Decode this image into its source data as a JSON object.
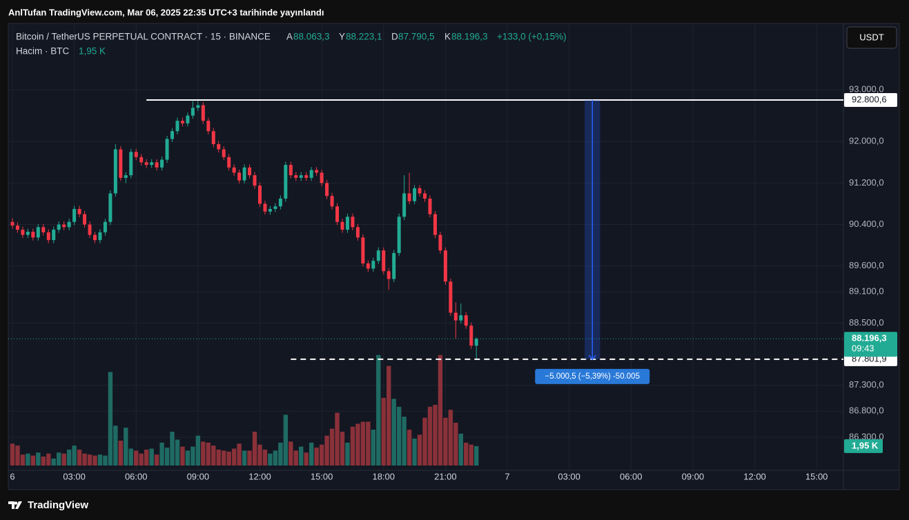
{
  "chart_data": {
    "type": "candlestick",
    "publish_note": "AnlTufan TradingView.com, Mar 06, 2025 22:35 UTC+3 tarihinde yayınlandı",
    "symbol": "Bitcoin / TetherUS PERPETUAL CONTRACT · 15 · BINANCE",
    "legend": {
      "open_key": "A",
      "open": "88.063,3",
      "high_key": "Y",
      "high": "88.223,1",
      "low_key": "D",
      "low": "87.790,5",
      "close_key": "K",
      "close": "88.196,3",
      "change": "+133,0 (+0,15%)"
    },
    "volume_title": "Hacim · BTC",
    "currency": "USDT",
    "brand": "TradingView",
    "up_color": "#22ab94",
    "down_color": "#f23645",
    "up_volume_color": "#1f6b63",
    "down_volume_color": "#8a3139",
    "open": [
      90450,
      90380,
      90300,
      90200,
      90260,
      90150,
      90350,
      90250,
      90100,
      90300,
      90400,
      90350,
      90450,
      90700,
      90600,
      90400,
      90200,
      90100,
      90250,
      90450,
      91000,
      91850,
      91300,
      91350,
      91800,
      91700,
      91600,
      91550,
      91600,
      91500,
      91650,
      92050,
      92200,
      92400,
      92350,
      92500,
      92650,
      92700,
      92400,
      92200,
      91950,
      91850,
      91700,
      91500,
      91400,
      91250,
      91500,
      91350,
      91150,
      90800,
      90650,
      90700,
      90750,
      90900,
      91550,
      91350,
      91300,
      91350,
      91300,
      91450,
      91400,
      91200,
      90950,
      90750,
      90450,
      90300,
      90550,
      90350,
      90150,
      89650,
      89550,
      89700,
      89900,
      89500,
      89350,
      89850,
      90550,
      91000,
      90850,
      91100,
      91000,
      90900,
      90600,
      90200,
      89900,
      89300,
      88700,
      88550,
      88650,
      88450,
      88063.3
    ],
    "high": [
      90520,
      90440,
      90360,
      90320,
      90320,
      90410,
      90410,
      90310,
      90360,
      90460,
      90460,
      90510,
      90760,
      90760,
      90660,
      90460,
      90260,
      90310,
      90510,
      91060,
      91950,
      91910,
      91410,
      91860,
      91860,
      91760,
      91660,
      91660,
      91660,
      91710,
      92110,
      92260,
      92460,
      92460,
      92560,
      92780,
      92790,
      92760,
      92460,
      92260,
      92010,
      91910,
      91760,
      91560,
      91460,
      91560,
      91560,
      91410,
      91210,
      90860,
      90760,
      90810,
      90960,
      91610,
      91610,
      91410,
      91410,
      91410,
      91510,
      91510,
      91460,
      91260,
      91010,
      90810,
      90510,
      90610,
      90610,
      90410,
      90210,
      89710,
      89760,
      89960,
      89960,
      89560,
      89910,
      90610,
      91350,
      91400,
      91160,
      91160,
      91060,
      90960,
      90660,
      90260,
      89960,
      89360,
      88900,
      88880,
      88710,
      88510,
      88223.1
    ],
    "low": [
      90320,
      90240,
      90140,
      90140,
      90090,
      90090,
      90190,
      90040,
      90040,
      90240,
      90290,
      90290,
      90390,
      90540,
      90340,
      90140,
      90040,
      90040,
      90190,
      90390,
      90940,
      91240,
      91200,
      91290,
      91640,
      91540,
      91490,
      91490,
      91440,
      91440,
      91590,
      91990,
      92140,
      92290,
      92290,
      92440,
      92590,
      92340,
      92140,
      91890,
      91790,
      91640,
      91440,
      91340,
      91190,
      91190,
      91290,
      91090,
      90740,
      90590,
      90590,
      90640,
      90690,
      90840,
      91290,
      91240,
      91240,
      91240,
      91240,
      91340,
      91140,
      90890,
      90690,
      90390,
      90240,
      90240,
      90290,
      90090,
      89590,
      89490,
      89490,
      89640,
      89440,
      89140,
      89290,
      89790,
      90490,
      90790,
      90790,
      90940,
      90840,
      90540,
      90140,
      89840,
      89240,
      88640,
      88200,
      88490,
      88390,
      88000,
      87790.5
    ],
    "close": [
      90380,
      90300,
      90200,
      90260,
      90150,
      90350,
      90250,
      90100,
      90300,
      90400,
      90350,
      90450,
      90700,
      90600,
      90400,
      90200,
      90100,
      90250,
      90450,
      91000,
      91850,
      91300,
      91350,
      91800,
      91700,
      91600,
      91550,
      91600,
      91500,
      91650,
      92050,
      92200,
      92400,
      92350,
      92500,
      92650,
      92700,
      92400,
      92200,
      91950,
      91850,
      91700,
      91500,
      91400,
      91250,
      91500,
      91350,
      91150,
      90800,
      90650,
      90700,
      90750,
      90900,
      91550,
      91350,
      91300,
      91350,
      91300,
      91450,
      91400,
      91200,
      90950,
      90750,
      90450,
      90300,
      90550,
      90350,
      90150,
      89650,
      89550,
      89700,
      89900,
      89500,
      89350,
      89850,
      90550,
      91000,
      90850,
      91100,
      91000,
      90900,
      90600,
      90200,
      89900,
      89300,
      88700,
      88550,
      88650,
      88450,
      88063.3,
      88196.3
    ],
    "volume": [
      2200,
      2000,
      1100,
      1200,
      1000,
      1300,
      900,
      1200,
      700,
      1300,
      1200,
      1600,
      2000,
      1600,
      1200,
      1100,
      1000,
      1100,
      1000,
      9400,
      4000,
      2500,
      3800,
      1700,
      1500,
      1200,
      1600,
      1700,
      1100,
      2300,
      1800,
      3400,
      2600,
      1900,
      1500,
      1900,
      3000,
      2400,
      2300,
      2000,
      1600,
      1500,
      1400,
      1700,
      2200,
      1500,
      1500,
      3400,
      2100,
      1600,
      1200,
      1500,
      2300,
      5100,
      2400,
      1500,
      1900,
      1300,
      2300,
      1800,
      2100,
      3000,
      3700,
      5300,
      3400,
      2300,
      3900,
      4200,
      4400,
      4400,
      3600,
      11100,
      6800,
      10000,
      6700,
      5900,
      4900,
      3600,
      2700,
      3100,
      4800,
      5900,
      6100,
      11100,
      4800,
      5600,
      4300,
      3200,
      2300,
      2100,
      1950
    ],
    "volume_last_label": "1,95 K",
    "last_price_label": "88.196,3",
    "countdown": "09:43",
    "ylim": [
      85660,
      94277
    ],
    "yticks": [
      {
        "value": 93000,
        "label": "93.000,0"
      },
      {
        "value": 92000,
        "label": "92.000,0"
      },
      {
        "value": 91200,
        "label": "91.200,0"
      },
      {
        "value": 90400,
        "label": "90.400,0"
      },
      {
        "value": 89600,
        "label": "89.600,0"
      },
      {
        "value": 89100,
        "label": "89.100,0"
      },
      {
        "value": 88500,
        "label": "88.500,0"
      },
      {
        "value": 87300,
        "label": "87.300,0"
      },
      {
        "value": 86800,
        "label": "86.800,0"
      },
      {
        "value": 86300,
        "label": "86.300,0"
      }
    ],
    "volume_ylim": [
      0,
      11500
    ],
    "xlim": [
      -0.8,
      161.2
    ],
    "xticks": [
      {
        "value": 0,
        "label": "6"
      },
      {
        "value": 12,
        "label": "03:00"
      },
      {
        "value": 24,
        "label": "06:00"
      },
      {
        "value": 36,
        "label": "09:00"
      },
      {
        "value": 48,
        "label": "12:00"
      },
      {
        "value": 60,
        "label": "15:00"
      },
      {
        "value": 72,
        "label": "18:00"
      },
      {
        "value": 84,
        "label": "21:00"
      },
      {
        "value": 96,
        "label": "7"
      },
      {
        "value": 108,
        "label": "03:00"
      },
      {
        "value": 120,
        "label": "06:00"
      },
      {
        "value": 132,
        "label": "09:00"
      },
      {
        "value": 144,
        "label": "12:00"
      },
      {
        "value": 156,
        "label": "15:00"
      }
    ],
    "grid": true,
    "hlines": [
      {
        "value": 92800.6,
        "label": "92.800,6",
        "style": "solid",
        "start": 26
      },
      {
        "value": 87801.9,
        "label": "87.801,9",
        "style": "dashed",
        "start": 54
      }
    ],
    "measure": {
      "from": 92800.6,
      "to": 87801.9,
      "start": 111,
      "end": 114,
      "label": "−5.000,5 (−5,39%) -50.005"
    }
  }
}
